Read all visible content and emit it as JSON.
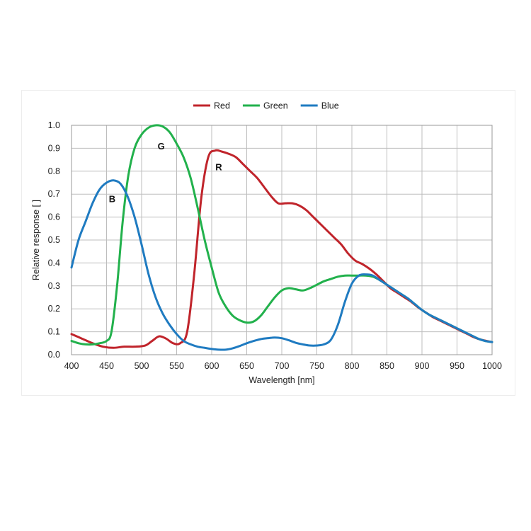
{
  "chart_data": {
    "type": "line",
    "xlabel": "Wavelength [nm]",
    "ylabel": "Relative response [ ]",
    "xlim": [
      400,
      1000
    ],
    "ylim": [
      0,
      1.0
    ],
    "x_ticks": [
      "400",
      "450",
      "500",
      "550",
      "600",
      "650",
      "700",
      "750",
      "800",
      "850",
      "900",
      "950",
      "1000"
    ],
    "y_ticks": [
      "0.0",
      "0.1",
      "0.2",
      "0.3",
      "0.4",
      "0.5",
      "0.6",
      "0.7",
      "0.8",
      "0.9",
      "1.0"
    ],
    "grid": true,
    "legend_position": "top-center",
    "series": [
      {
        "name": "Red",
        "color": "#c0242b",
        "label": "R",
        "label_at": [
          610,
          0.82
        ],
        "points": [
          [
            400,
            0.09
          ],
          [
            415,
            0.07
          ],
          [
            430,
            0.05
          ],
          [
            445,
            0.035
          ],
          [
            460,
            0.03
          ],
          [
            475,
            0.035
          ],
          [
            490,
            0.035
          ],
          [
            505,
            0.04
          ],
          [
            515,
            0.06
          ],
          [
            525,
            0.08
          ],
          [
            535,
            0.07
          ],
          [
            545,
            0.05
          ],
          [
            555,
            0.05
          ],
          [
            565,
            0.1
          ],
          [
            575,
            0.35
          ],
          [
            585,
            0.68
          ],
          [
            595,
            0.86
          ],
          [
            605,
            0.89
          ],
          [
            615,
            0.885
          ],
          [
            625,
            0.875
          ],
          [
            635,
            0.86
          ],
          [
            645,
            0.83
          ],
          [
            655,
            0.8
          ],
          [
            665,
            0.77
          ],
          [
            675,
            0.73
          ],
          [
            685,
            0.69
          ],
          [
            695,
            0.66
          ],
          [
            705,
            0.66
          ],
          [
            715,
            0.66
          ],
          [
            725,
            0.65
          ],
          [
            735,
            0.63
          ],
          [
            745,
            0.6
          ],
          [
            755,
            0.57
          ],
          [
            765,
            0.54
          ],
          [
            775,
            0.51
          ],
          [
            785,
            0.48
          ],
          [
            795,
            0.44
          ],
          [
            805,
            0.41
          ],
          [
            815,
            0.395
          ],
          [
            825,
            0.375
          ],
          [
            835,
            0.35
          ],
          [
            845,
            0.32
          ],
          [
            855,
            0.29
          ],
          [
            865,
            0.27
          ],
          [
            875,
            0.25
          ],
          [
            885,
            0.23
          ],
          [
            895,
            0.205
          ],
          [
            905,
            0.185
          ],
          [
            915,
            0.165
          ],
          [
            925,
            0.15
          ],
          [
            935,
            0.135
          ],
          [
            945,
            0.12
          ],
          [
            955,
            0.105
          ],
          [
            965,
            0.09
          ],
          [
            975,
            0.075
          ],
          [
            985,
            0.065
          ],
          [
            1000,
            0.055
          ]
        ]
      },
      {
        "name": "Green",
        "color": "#22b14c",
        "label": "G",
        "label_at": [
          528,
          0.91
        ],
        "points": [
          [
            400,
            0.06
          ],
          [
            410,
            0.05
          ],
          [
            420,
            0.045
          ],
          [
            430,
            0.045
          ],
          [
            440,
            0.05
          ],
          [
            450,
            0.06
          ],
          [
            457,
            0.1
          ],
          [
            465,
            0.3
          ],
          [
            473,
            0.58
          ],
          [
            481,
            0.78
          ],
          [
            490,
            0.9
          ],
          [
            500,
            0.96
          ],
          [
            510,
            0.99
          ],
          [
            520,
            1.0
          ],
          [
            530,
            0.995
          ],
          [
            540,
            0.97
          ],
          [
            550,
            0.92
          ],
          [
            560,
            0.86
          ],
          [
            570,
            0.77
          ],
          [
            580,
            0.64
          ],
          [
            590,
            0.5
          ],
          [
            600,
            0.38
          ],
          [
            610,
            0.27
          ],
          [
            620,
            0.21
          ],
          [
            630,
            0.17
          ],
          [
            640,
            0.15
          ],
          [
            650,
            0.14
          ],
          [
            660,
            0.145
          ],
          [
            670,
            0.17
          ],
          [
            680,
            0.21
          ],
          [
            690,
            0.25
          ],
          [
            700,
            0.28
          ],
          [
            710,
            0.29
          ],
          [
            720,
            0.285
          ],
          [
            730,
            0.28
          ],
          [
            740,
            0.29
          ],
          [
            750,
            0.305
          ],
          [
            760,
            0.32
          ],
          [
            770,
            0.33
          ],
          [
            780,
            0.34
          ],
          [
            790,
            0.345
          ],
          [
            800,
            0.345
          ],
          [
            810,
            0.345
          ],
          [
            820,
            0.345
          ],
          [
            830,
            0.34
          ],
          [
            840,
            0.325
          ],
          [
            850,
            0.305
          ],
          [
            860,
            0.285
          ],
          [
            870,
            0.265
          ],
          [
            880,
            0.245
          ],
          [
            890,
            0.22
          ],
          [
            900,
            0.195
          ],
          [
            910,
            0.175
          ],
          [
            920,
            0.16
          ],
          [
            930,
            0.145
          ],
          [
            940,
            0.13
          ],
          [
            950,
            0.115
          ],
          [
            960,
            0.1
          ],
          [
            970,
            0.085
          ],
          [
            980,
            0.07
          ],
          [
            990,
            0.06
          ],
          [
            1000,
            0.055
          ]
        ]
      },
      {
        "name": "Blue",
        "color": "#1f7bc1",
        "label": "B",
        "label_at": [
          458,
          0.68
        ],
        "points": [
          [
            400,
            0.38
          ],
          [
            410,
            0.5
          ],
          [
            420,
            0.58
          ],
          [
            430,
            0.66
          ],
          [
            440,
            0.72
          ],
          [
            450,
            0.75
          ],
          [
            460,
            0.76
          ],
          [
            470,
            0.745
          ],
          [
            480,
            0.69
          ],
          [
            490,
            0.6
          ],
          [
            500,
            0.48
          ],
          [
            510,
            0.35
          ],
          [
            520,
            0.25
          ],
          [
            530,
            0.18
          ],
          [
            540,
            0.13
          ],
          [
            550,
            0.09
          ],
          [
            560,
            0.06
          ],
          [
            570,
            0.045
          ],
          [
            580,
            0.035
          ],
          [
            590,
            0.03
          ],
          [
            600,
            0.025
          ],
          [
            610,
            0.022
          ],
          [
            620,
            0.022
          ],
          [
            630,
            0.028
          ],
          [
            640,
            0.038
          ],
          [
            650,
            0.05
          ],
          [
            660,
            0.06
          ],
          [
            670,
            0.068
          ],
          [
            680,
            0.072
          ],
          [
            690,
            0.075
          ],
          [
            700,
            0.072
          ],
          [
            710,
            0.063
          ],
          [
            720,
            0.052
          ],
          [
            730,
            0.045
          ],
          [
            740,
            0.04
          ],
          [
            750,
            0.04
          ],
          [
            760,
            0.045
          ],
          [
            770,
            0.065
          ],
          [
            780,
            0.13
          ],
          [
            790,
            0.23
          ],
          [
            800,
            0.31
          ],
          [
            810,
            0.345
          ],
          [
            820,
            0.35
          ],
          [
            830,
            0.345
          ],
          [
            840,
            0.325
          ],
          [
            850,
            0.305
          ],
          [
            860,
            0.285
          ],
          [
            870,
            0.265
          ],
          [
            880,
            0.245
          ],
          [
            890,
            0.22
          ],
          [
            900,
            0.195
          ],
          [
            910,
            0.175
          ],
          [
            920,
            0.16
          ],
          [
            930,
            0.145
          ],
          [
            940,
            0.13
          ],
          [
            950,
            0.115
          ],
          [
            960,
            0.1
          ],
          [
            970,
            0.085
          ],
          [
            980,
            0.07
          ],
          [
            990,
            0.06
          ],
          [
            1000,
            0.055
          ]
        ]
      }
    ]
  }
}
